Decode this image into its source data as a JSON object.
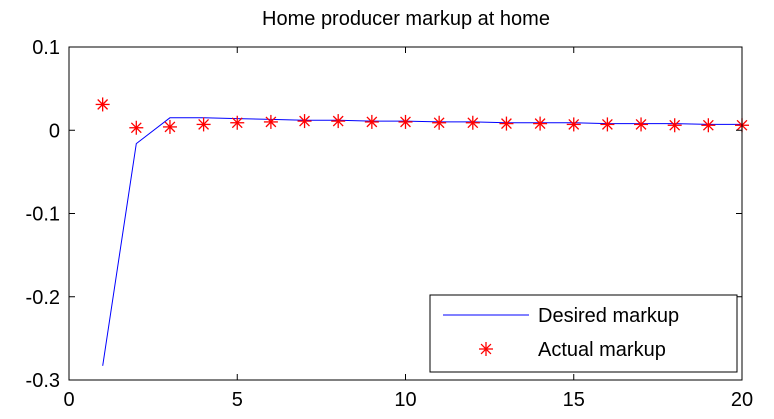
{
  "chart_data": {
    "type": "line",
    "title": "Home producer markup at home",
    "xlabel": "",
    "ylabel": "",
    "xlim": [
      0,
      20
    ],
    "ylim": [
      -0.3,
      0.1
    ],
    "xticks": [
      0,
      5,
      10,
      15,
      20
    ],
    "yticks": [
      -0.3,
      -0.2,
      -0.1,
      0,
      0.1
    ],
    "xtick_labels": [
      "0",
      "5",
      "10",
      "15",
      "20"
    ],
    "ytick_labels": [
      "-0.3",
      "-0.2",
      "-0.1",
      "0",
      "0.1"
    ],
    "grid": false,
    "legend_position": "bottom-right",
    "series": [
      {
        "name": "Desired markup",
        "style": "line",
        "color": "#0000ff",
        "x": [
          1,
          2,
          3,
          4,
          5,
          6,
          7,
          8,
          9,
          10,
          11,
          12,
          13,
          14,
          15,
          16,
          17,
          18,
          19,
          20
        ],
        "y": [
          -0.283,
          -0.016,
          0.015,
          0.015,
          0.014,
          0.013,
          0.012,
          0.012,
          0.011,
          0.011,
          0.01,
          0.01,
          0.009,
          0.009,
          0.009,
          0.008,
          0.008,
          0.008,
          0.007,
          0.007
        ]
      },
      {
        "name": "Actual markup",
        "style": "marker",
        "marker": "asterisk",
        "color": "#ff0000",
        "x": [
          1,
          2,
          3,
          4,
          5,
          6,
          7,
          8,
          9,
          10,
          11,
          12,
          13,
          14,
          15,
          16,
          17,
          18,
          19,
          20
        ],
        "y": [
          0.031,
          0.003,
          0.004,
          0.007,
          0.009,
          0.01,
          0.011,
          0.011,
          0.01,
          0.01,
          0.009,
          0.009,
          0.008,
          0.008,
          0.007,
          0.007,
          0.007,
          0.006,
          0.006,
          0.006
        ]
      }
    ]
  }
}
